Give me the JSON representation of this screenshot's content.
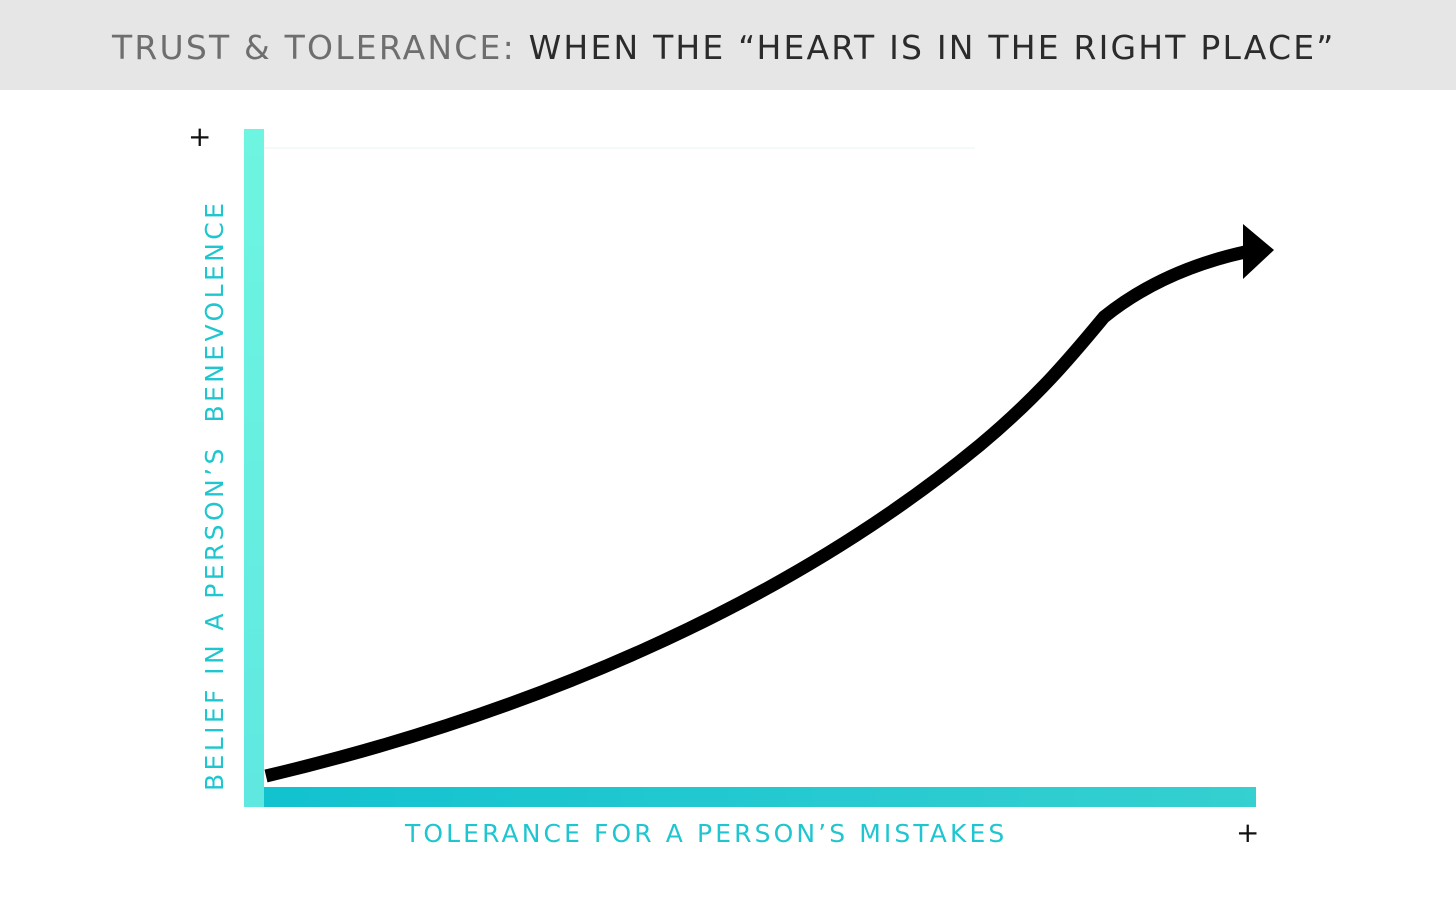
{
  "header": {
    "title_part1": "TRUST & TOLERANCE:",
    "title_part2": "WHEN THE “HEART IS IN THE RIGHT PLACE”"
  },
  "axes": {
    "y_label": "BELIEF IN A PERSON’S  BENEVOLENCE",
    "x_label": "TOLERANCE FOR A PERSON’S MISTAKES",
    "y_max_marker": "+",
    "x_max_marker": "+"
  },
  "colors": {
    "header_background": "#e6e6e6",
    "axis_y_top": "#6ef5e1",
    "axis_x": "#1ac4cf",
    "axis_label": "#1fc6cf",
    "curve": "#000000"
  }
}
